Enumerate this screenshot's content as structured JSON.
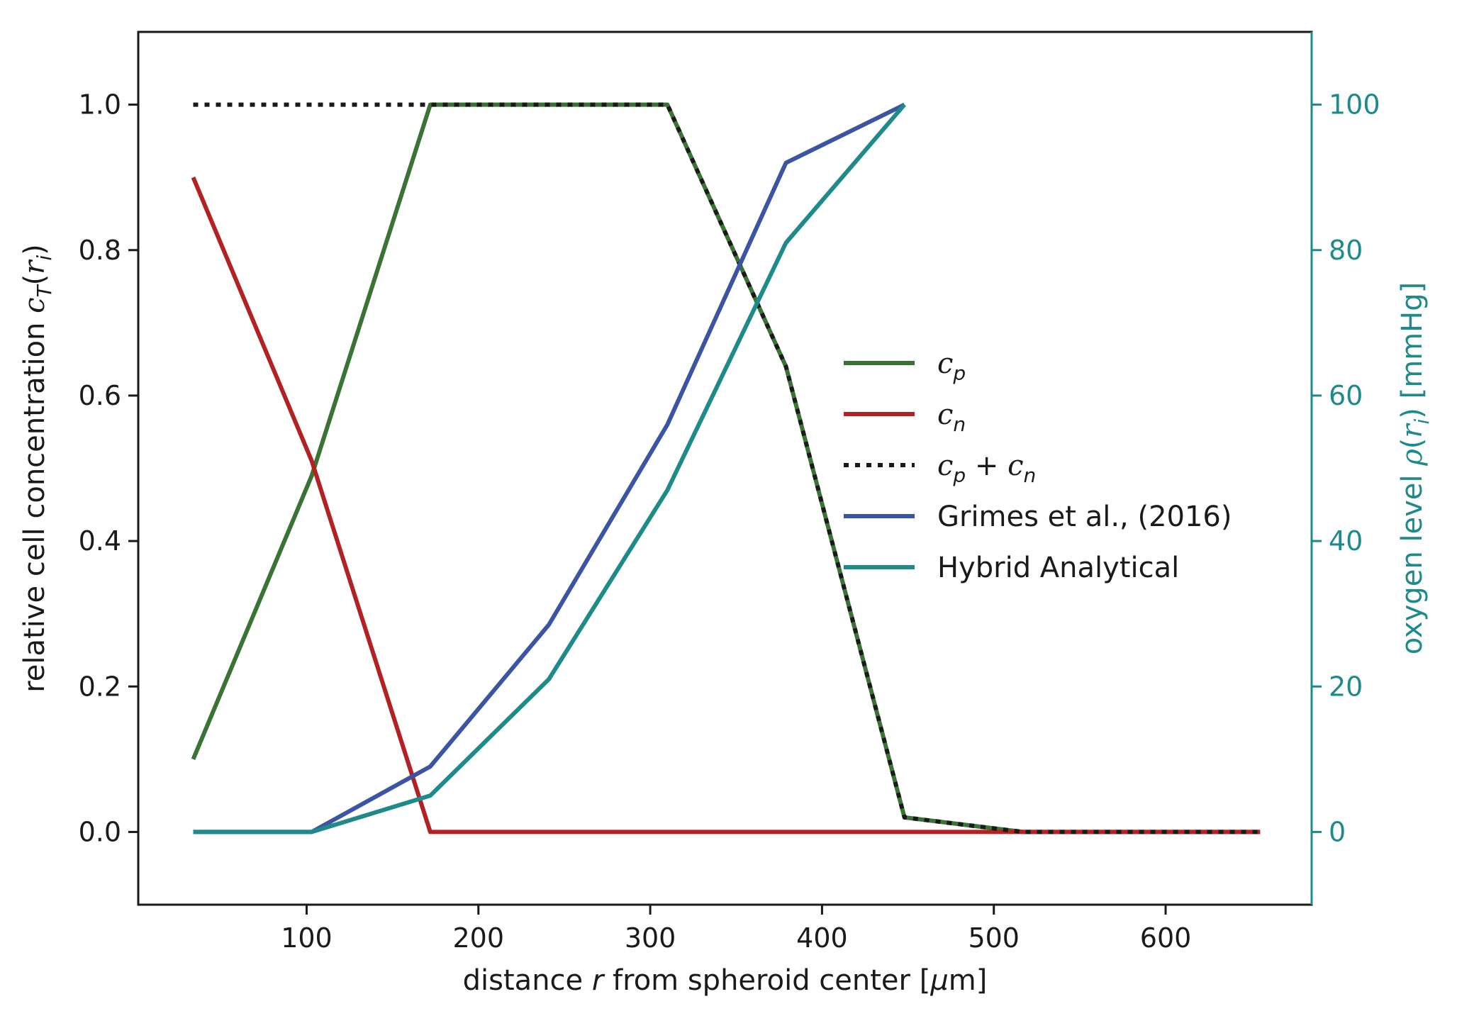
{
  "chart_data": {
    "type": "line",
    "xlabel_parts": [
      "distance ",
      "r",
      " from spheroid center [",
      "μ",
      "m]"
    ],
    "ylabel_parts": [
      "relative cell concentration ",
      "c",
      "T",
      "(",
      "r",
      "i",
      ")"
    ],
    "y2label_parts": [
      "oxygen level ",
      "ρ",
      "(",
      "r",
      "i",
      ")",
      " [mmHg]"
    ],
    "xlim": [
      2,
      685
    ],
    "ylim": [
      -0.1,
      1.1
    ],
    "y2lim": [
      -10,
      110
    ],
    "xticks": [
      100,
      200,
      300,
      400,
      500,
      600
    ],
    "xtick_labels": [
      "100",
      "200",
      "300",
      "400",
      "500",
      "600"
    ],
    "yticks": [
      0.0,
      0.2,
      0.4,
      0.6,
      0.8,
      1.0
    ],
    "ytick_labels": [
      "0.0",
      "0.2",
      "0.4",
      "0.6",
      "0.8",
      "1.0"
    ],
    "y2ticks": [
      0,
      20,
      40,
      60,
      80,
      100
    ],
    "y2tick_labels": [
      "0",
      "20",
      "40",
      "60",
      "80",
      "100"
    ],
    "y2_color": "#1f8a8a",
    "legend_position": "center-right",
    "series": [
      {
        "name_parts": [
          [
            "c",
            "math"
          ],
          [
            "p",
            "sub"
          ]
        ],
        "axis": "left",
        "color": "#3a7434",
        "dash": "solid",
        "x": [
          34,
          103,
          172,
          241,
          310,
          379,
          448,
          517,
          586,
          655
        ],
        "y": [
          0.1,
          0.49,
          1.0,
          1.0,
          1.0,
          0.64,
          0.02,
          0.0,
          0.0,
          0.0
        ]
      },
      {
        "name_parts": [
          [
            "c",
            "math"
          ],
          [
            "n",
            "sub"
          ]
        ],
        "axis": "left",
        "color": "#b22222",
        "dash": "solid",
        "x": [
          34,
          103,
          172,
          241,
          310,
          379,
          448,
          517,
          586,
          655
        ],
        "y": [
          0.9,
          0.51,
          0.0,
          0.0,
          0.0,
          0.0,
          0.0,
          0.0,
          0.0,
          0.0
        ]
      },
      {
        "name_parts": [
          [
            "c",
            "math"
          ],
          [
            "p",
            "sub"
          ],
          [
            " + ",
            "plain"
          ],
          [
            "c",
            "math"
          ],
          [
            "n",
            "sub"
          ]
        ],
        "axis": "left",
        "color": "#1a1a1a",
        "dash": "dotted",
        "x": [
          34,
          103,
          172,
          241,
          310,
          379,
          448,
          517,
          586,
          655
        ],
        "y": [
          1.0,
          1.0,
          1.0,
          1.0,
          1.0,
          0.64,
          0.02,
          0.0,
          0.0,
          0.0
        ]
      },
      {
        "name_parts": [
          [
            "Grimes et al., (2016)",
            "plain"
          ]
        ],
        "axis": "right",
        "color": "#3b55a3",
        "dash": "solid",
        "x": [
          34,
          103,
          172,
          241,
          310,
          379,
          448
        ],
        "y": [
          0,
          0,
          9,
          28.5,
          56,
          92,
          100
        ]
      },
      {
        "name_parts": [
          [
            "Hybrid Analytical",
            "plain"
          ]
        ],
        "axis": "right",
        "color": "#1f8a8a",
        "dash": "solid",
        "x": [
          34,
          103,
          172,
          241,
          310,
          379,
          448
        ],
        "y": [
          0,
          0,
          5,
          21,
          47,
          81,
          100
        ]
      }
    ]
  }
}
